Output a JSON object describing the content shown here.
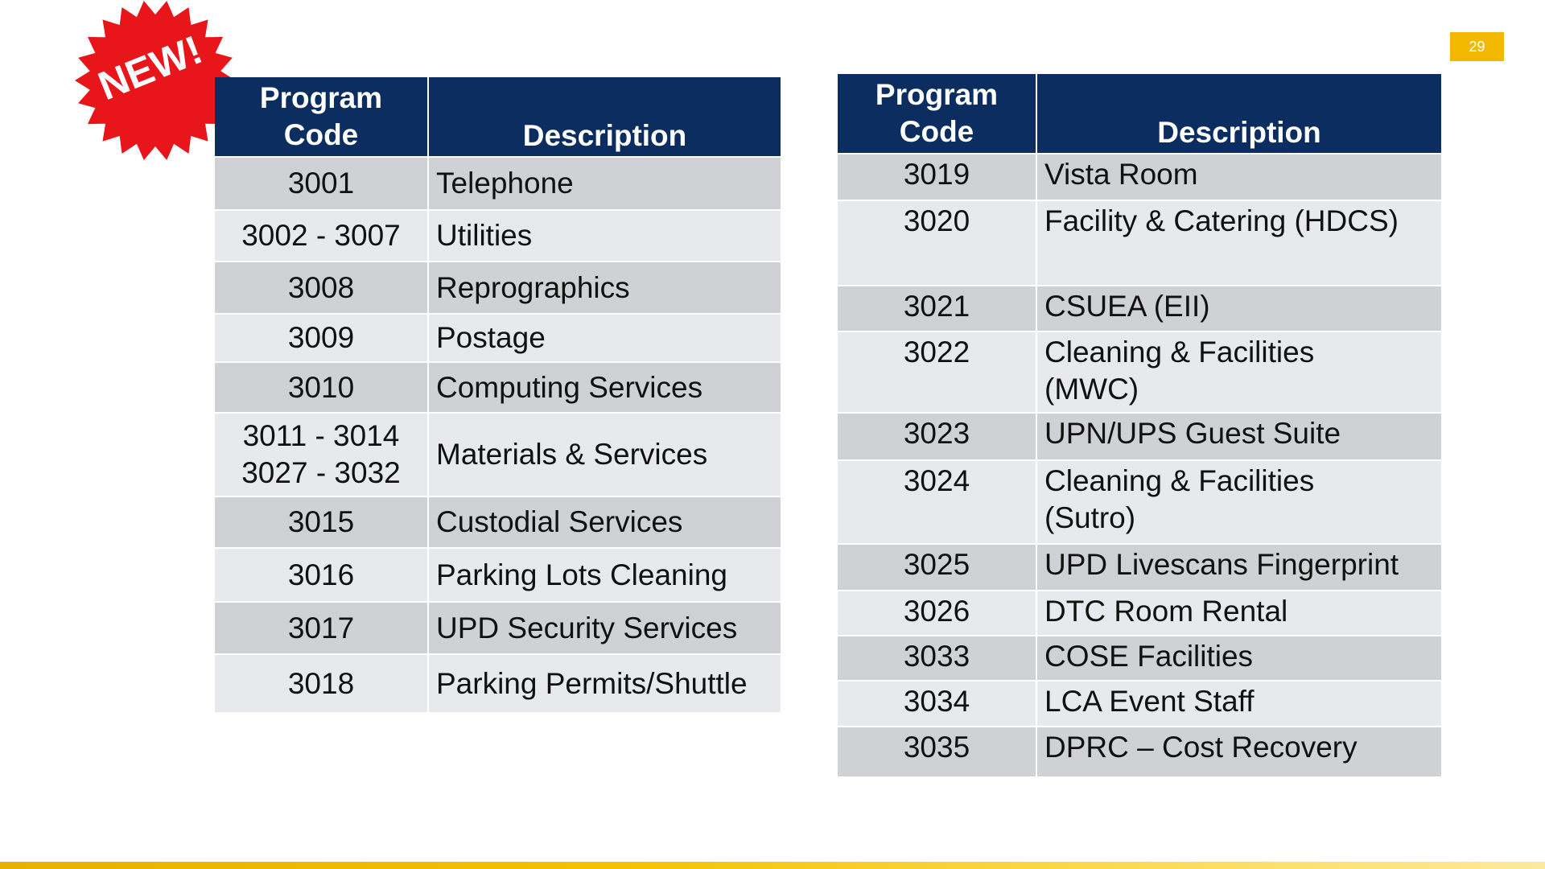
{
  "badge": "NEW!",
  "page_number": "29",
  "tables": [
    {
      "header": {
        "code": [
          "Program",
          "Code"
        ],
        "description": "Description"
      },
      "rows": [
        {
          "code": "3001",
          "description": "Telephone"
        },
        {
          "code": "3002 - 3007",
          "description": "Utilities"
        },
        {
          "code": "3008",
          "description": "Reprographics"
        },
        {
          "code": "3009",
          "description": "Postage"
        },
        {
          "code": "3010",
          "description": "Computing Services"
        },
        {
          "code": [
            "3011 - 3014",
            "3027 - 3032"
          ],
          "description": "Materials & Services"
        },
        {
          "code": "3015",
          "description": "Custodial Services"
        },
        {
          "code": "3016",
          "description": "Parking Lots Cleaning"
        },
        {
          "code": "3017",
          "description": "UPD Security Services"
        },
        {
          "code": "3018",
          "description": "Parking Permits/Shuttle"
        }
      ]
    },
    {
      "header": {
        "code": [
          "Program",
          "Code"
        ],
        "description": "Description"
      },
      "rows": [
        {
          "code": "3019",
          "description": "Vista Room"
        },
        {
          "code": "3020",
          "description": "Facility & Catering (HDCS)"
        },
        {
          "code": "3021",
          "description": "CSUEA (EII)"
        },
        {
          "code": "3022",
          "description": [
            "Cleaning & Facilities",
            "(MWC)"
          ]
        },
        {
          "code": "3023",
          "description": "UPN/UPS Guest Suite"
        },
        {
          "code": "3024",
          "description": [
            "Cleaning & Facilities",
            "(Sutro)"
          ]
        },
        {
          "code": "3025",
          "description": "UPD Livescans Fingerprint"
        },
        {
          "code": "3026",
          "description": "DTC Room Rental"
        },
        {
          "code": "3033",
          "description": "COSE Facilities"
        },
        {
          "code": "3034",
          "description": "LCA Event Staff"
        },
        {
          "code": "3035",
          "description": "DPRC – Cost Recovery"
        }
      ]
    }
  ]
}
